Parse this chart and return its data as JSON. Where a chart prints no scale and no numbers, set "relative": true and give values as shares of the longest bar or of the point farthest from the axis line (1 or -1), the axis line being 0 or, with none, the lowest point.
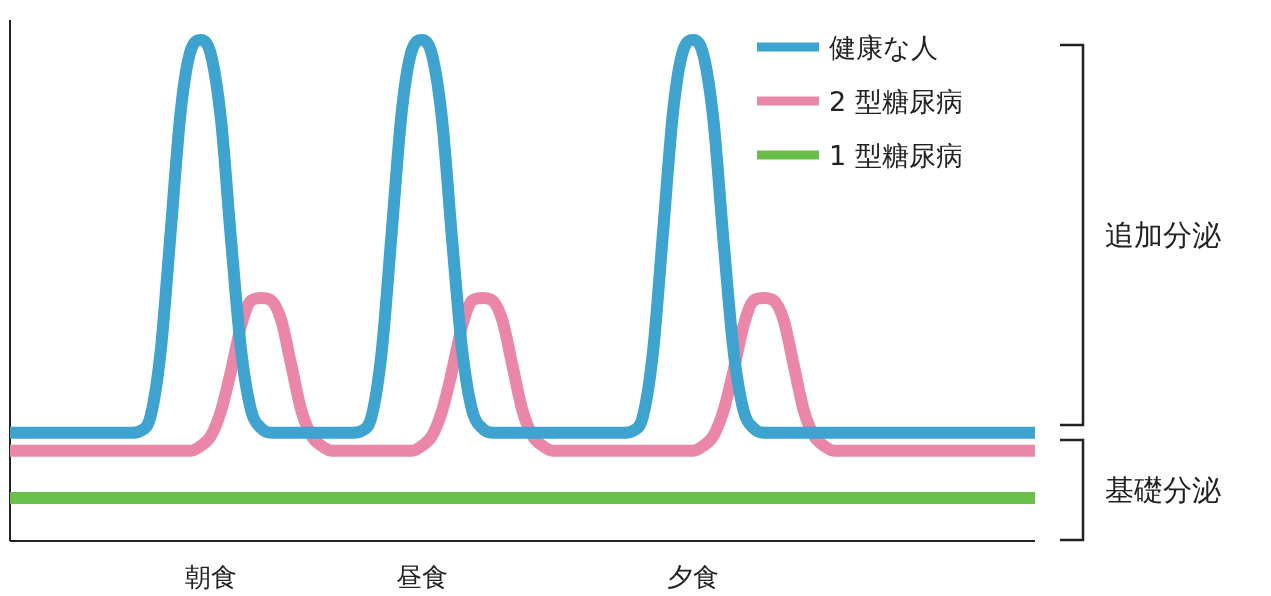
{
  "chart_data": {
    "type": "line",
    "relative": true,
    "legend": "top right",
    "categories": [
      null,
      null,
      null,
      null,
      null,
      null,
      null,
      null,
      null,
      null,
      null,
      null,
      null,
      null,
      null,
      null,
      null,
      null,
      null,
      null,
      "朝食",
      null,
      null,
      null,
      null,
      null,
      null,
      null,
      null,
      null,
      null,
      null,
      null,
      null,
      null,
      null,
      null,
      null,
      null,
      null,
      null,
      "昼食",
      null,
      null,
      null,
      null,
      null,
      null,
      null,
      null,
      null,
      null,
      null,
      null,
      null,
      null,
      null,
      null,
      null,
      null,
      null,
      null,
      null,
      null,
      null,
      null,
      null,
      null,
      "夕食",
      null,
      null,
      null,
      null,
      null,
      null,
      null,
      null,
      null,
      null,
      null,
      null,
      null,
      null,
      null,
      null,
      null,
      null,
      null,
      null,
      null,
      null,
      null,
      null,
      null,
      null,
      null,
      null,
      null,
      null,
      null,
      null,
      null,
      null
    ],
    "series": [
      {
        "name": "健康な人",
        "color": "#3fa3cf",
        "values": [
          0.216,
          0.216,
          0.216,
          0.216,
          0.216,
          0.216,
          0.216,
          0.216,
          0.216,
          0.216,
          0.216,
          0.216,
          0.216,
          0.22,
          0.25,
          0.38,
          0.62,
          0.86,
          0.98,
          1.0,
          0.97,
          0.84,
          0.6,
          0.38,
          0.26,
          0.225,
          0.216,
          0.216,
          0.216,
          0.216,
          0.216,
          0.216,
          0.216,
          0.216,
          0.216,
          0.22,
          0.25,
          0.38,
          0.62,
          0.86,
          0.98,
          1.0,
          0.97,
          0.84,
          0.6,
          0.38,
          0.26,
          0.225,
          0.216,
          0.216,
          0.216,
          0.216,
          0.216,
          0.216,
          0.216,
          0.216,
          0.216,
          0.216,
          0.216,
          0.216,
          0.216,
          0.216,
          0.22,
          0.25,
          0.38,
          0.62,
          0.86,
          0.98,
          1.0,
          0.97,
          0.84,
          0.6,
          0.38,
          0.26,
          0.225,
          0.216,
          0.216,
          0.216,
          0.216,
          0.216,
          0.216,
          0.216,
          0.216,
          0.216,
          0.216,
          0.216,
          0.216,
          0.216,
          0.216,
          0.216,
          0.216,
          0.216,
          0.216,
          0.216,
          0.216,
          0.216,
          0.216,
          0.216,
          0.216,
          0.216,
          0.216,
          0.216,
          0.216
        ]
      },
      {
        "name": "2 型糖尿病",
        "color": "#ea87a8",
        "values": [
          0.18,
          0.18,
          0.18,
          0.18,
          0.18,
          0.18,
          0.18,
          0.18,
          0.18,
          0.18,
          0.18,
          0.18,
          0.18,
          0.18,
          0.18,
          0.18,
          0.18,
          0.18,
          0.18,
          0.19,
          0.21,
          0.26,
          0.34,
          0.43,
          0.48,
          0.485,
          0.48,
          0.44,
          0.35,
          0.26,
          0.21,
          0.19,
          0.18,
          0.18,
          0.18,
          0.18,
          0.18,
          0.18,
          0.18,
          0.18,
          0.18,
          0.19,
          0.21,
          0.26,
          0.34,
          0.43,
          0.48,
          0.485,
          0.48,
          0.44,
          0.35,
          0.26,
          0.21,
          0.19,
          0.18,
          0.18,
          0.18,
          0.18,
          0.18,
          0.18,
          0.18,
          0.18,
          0.18,
          0.18,
          0.18,
          0.18,
          0.18,
          0.18,
          0.18,
          0.19,
          0.21,
          0.26,
          0.34,
          0.43,
          0.48,
          0.485,
          0.48,
          0.44,
          0.35,
          0.26,
          0.21,
          0.19,
          0.18,
          0.18,
          0.18,
          0.18,
          0.18,
          0.18,
          0.18,
          0.18,
          0.18,
          0.18,
          0.18,
          0.18,
          0.18,
          0.18,
          0.18,
          0.18,
          0.18,
          0.18,
          0.18,
          0.18,
          0.18
        ]
      },
      {
        "name": "1 型糖尿病",
        "color": "#6abf4b",
        "values": [
          0.086,
          0.086,
          0.086,
          0.086,
          0.086,
          0.086,
          0.086,
          0.086,
          0.086,
          0.086,
          0.086,
          0.086,
          0.086,
          0.086,
          0.086,
          0.086,
          0.086,
          0.086,
          0.086,
          0.086,
          0.086,
          0.086,
          0.086,
          0.086,
          0.086,
          0.086,
          0.086,
          0.086,
          0.086,
          0.086,
          0.086,
          0.086,
          0.086,
          0.086,
          0.086,
          0.086,
          0.086,
          0.086,
          0.086,
          0.086,
          0.086,
          0.086,
          0.086,
          0.086,
          0.086,
          0.086,
          0.086,
          0.086,
          0.086,
          0.086,
          0.086,
          0.086,
          0.086,
          0.086,
          0.086,
          0.086,
          0.086,
          0.086,
          0.086,
          0.086,
          0.086,
          0.086,
          0.086,
          0.086,
          0.086,
          0.086,
          0.086,
          0.086,
          0.086,
          0.086,
          0.086,
          0.086,
          0.086,
          0.086,
          0.086,
          0.086,
          0.086,
          0.086,
          0.086,
          0.086,
          0.086,
          0.086,
          0.086,
          0.086,
          0.086,
          0.086,
          0.086,
          0.086,
          0.086,
          0.086,
          0.086,
          0.086,
          0.086,
          0.086,
          0.086,
          0.086,
          0.086,
          0.086,
          0.086,
          0.086,
          0.086,
          0.086,
          0.086
        ]
      }
    ],
    "annotations": [
      "追加分泌",
      "基礎分泌"
    ]
  }
}
